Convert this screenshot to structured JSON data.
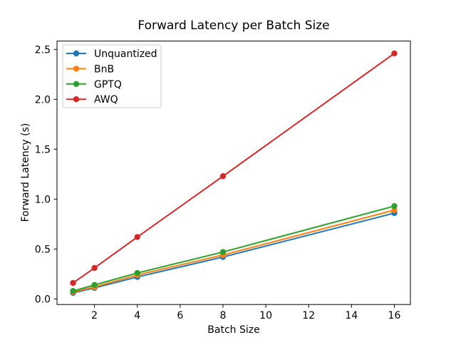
{
  "figure": {
    "background_color": "#ffffff",
    "axis_color": "#000000",
    "legend_border_color": "#cccccc"
  },
  "chart_data": {
    "type": "line",
    "title": "Forward Latency per Batch Size",
    "xlabel": "Batch Size",
    "ylabel": "Forward Latency (s)",
    "x": [
      1,
      2,
      4,
      8,
      16
    ],
    "series": [
      {
        "name": "Unquantized",
        "color": "#1f77b4",
        "marker": "circle",
        "values": [
          0.06,
          0.11,
          0.22,
          0.42,
          0.86
        ]
      },
      {
        "name": "BnB",
        "color": "#ff7f0e",
        "marker": "circle",
        "values": [
          0.07,
          0.12,
          0.24,
          0.44,
          0.89
        ]
      },
      {
        "name": "GPTQ",
        "color": "#2ca02c",
        "marker": "circle",
        "values": [
          0.08,
          0.14,
          0.26,
          0.47,
          0.93
        ]
      },
      {
        "name": "AWQ",
        "color": "#d62728",
        "marker": "circle",
        "values": [
          0.16,
          0.31,
          0.62,
          1.23,
          2.46
        ]
      }
    ],
    "xlim": [
      0.25,
      16.75
    ],
    "ylim": [
      -0.056,
      2.584
    ],
    "xticks": [
      2,
      4,
      6,
      8,
      10,
      12,
      14,
      16
    ],
    "xtick_labels": [
      "2",
      "4",
      "6",
      "8",
      "10",
      "12",
      "14",
      "16"
    ],
    "yticks": [
      0.0,
      0.5,
      1.0,
      1.5,
      2.0,
      2.5
    ],
    "ytick_labels": [
      "0.0",
      "0.5",
      "1.0",
      "1.5",
      "2.0",
      "2.5"
    ],
    "grid": false,
    "legend": {
      "position": "upper-left",
      "frame": true,
      "entries": [
        "Unquantized",
        "BnB",
        "GPTQ",
        "AWQ"
      ]
    }
  }
}
